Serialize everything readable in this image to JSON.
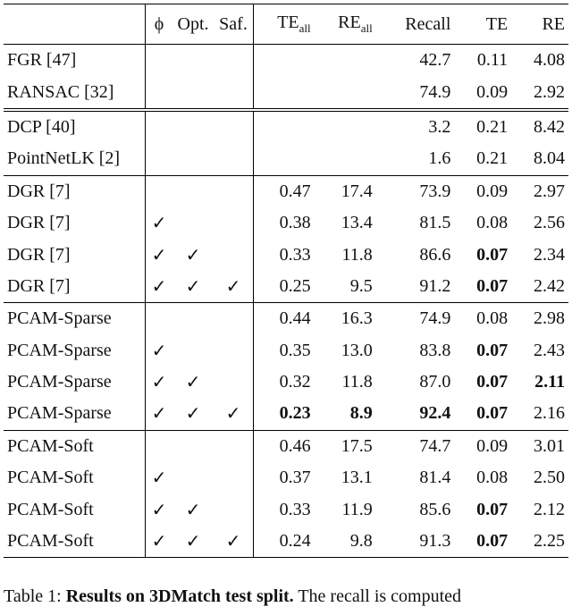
{
  "table": {
    "header": [
      "",
      "ϕ",
      "Opt.",
      "Saf.",
      {
        "main": "TE",
        "sub": "all"
      },
      {
        "main": "RE",
        "sub": "all"
      },
      "Recall",
      "TE",
      "RE"
    ],
    "groups": [
      [
        [
          "FGR [47]",
          null,
          null,
          null,
          null,
          null,
          "42.7",
          "0.11",
          "4.08"
        ],
        [
          "RANSAC [32]",
          null,
          null,
          null,
          null,
          null,
          "74.9",
          "0.09",
          "2.92"
        ]
      ],
      [
        [
          "DCP [40]",
          null,
          null,
          null,
          null,
          null,
          "3.2",
          "0.21",
          "8.42"
        ],
        [
          "PointNetLK [2]",
          null,
          null,
          null,
          null,
          null,
          "1.6",
          "0.21",
          "8.04"
        ]
      ],
      [
        [
          "DGR [7]",
          null,
          null,
          null,
          "0.47",
          "17.4",
          "73.9",
          "0.09",
          "2.97"
        ],
        [
          "DGR [7]",
          "✓",
          null,
          null,
          "0.38",
          "13.4",
          "81.5",
          "0.08",
          "2.56"
        ],
        [
          "DGR [7]",
          "✓",
          "✓",
          null,
          "0.33",
          "11.8",
          "86.6",
          {
            "text": "0.07",
            "bold": true
          },
          "2.34"
        ],
        [
          "DGR [7]",
          "✓",
          "✓",
          "✓",
          "0.25",
          "9.5",
          "91.2",
          {
            "text": "0.07",
            "bold": true
          },
          "2.42"
        ]
      ],
      [
        [
          "PCAM-Sparse",
          null,
          null,
          null,
          "0.44",
          "16.3",
          "74.9",
          "0.08",
          "2.98"
        ],
        [
          "PCAM-Sparse",
          "✓",
          null,
          null,
          "0.35",
          "13.0",
          "83.8",
          {
            "text": "0.07",
            "bold": true
          },
          "2.43"
        ],
        [
          "PCAM-Sparse",
          "✓",
          "✓",
          null,
          "0.32",
          "11.8",
          "87.0",
          {
            "text": "0.07",
            "bold": true
          },
          {
            "text": "2.11",
            "bold": true
          }
        ],
        [
          "PCAM-Sparse",
          "✓",
          "✓",
          "✓",
          {
            "text": "0.23",
            "bold": true
          },
          {
            "text": "8.9",
            "bold": true
          },
          {
            "text": "92.4",
            "bold": true
          },
          {
            "text": "0.07",
            "bold": true
          },
          "2.16"
        ]
      ],
      [
        [
          "PCAM-Soft",
          null,
          null,
          null,
          "0.46",
          "17.5",
          "74.7",
          "0.09",
          "3.01"
        ],
        [
          "PCAM-Soft",
          "✓",
          null,
          null,
          "0.37",
          "13.1",
          "81.4",
          "0.08",
          "2.50"
        ],
        [
          "PCAM-Soft",
          "✓",
          "✓",
          null,
          "0.33",
          "11.9",
          "85.6",
          {
            "text": "0.07",
            "bold": true
          },
          "2.12"
        ],
        [
          "PCAM-Soft",
          "✓",
          "✓",
          "✓",
          "0.24",
          "9.8",
          "91.3",
          {
            "text": "0.07",
            "bold": true
          },
          "2.25"
        ]
      ]
    ]
  },
  "caption": {
    "label": "Table 1:",
    "bold": "Results on 3DMatch test split.",
    "rest": "The recall is computed"
  }
}
